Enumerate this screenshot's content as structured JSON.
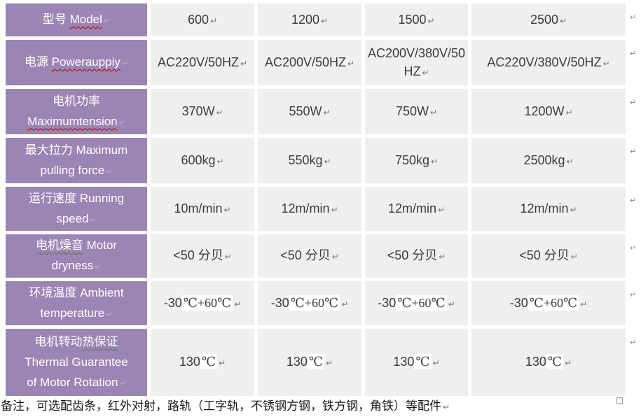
{
  "colors": {
    "label_column_bg": "#9B85B4",
    "value_cell_bg": "#F1EFED",
    "value_text": "#3C3C3C",
    "spell_squiggle": "#C00000",
    "grammar_squiggle": "#567B56",
    "highlight_bg": "#FFFFFF"
  },
  "marks": {
    "line_break": "↵"
  },
  "table": {
    "rows": [
      {
        "name": "model",
        "label_lines": [
          [
            {
              "t": "型号 "
            },
            {
              "t": "Model",
              "u": "spell"
            }
          ]
        ],
        "cells": [
          {
            "segs": [
              {
                "t": "600"
              }
            ]
          },
          {
            "segs": [
              {
                "t": "1200"
              }
            ]
          },
          {
            "segs": [
              {
                "t": "1500"
              }
            ]
          },
          {
            "segs": [
              {
                "t": "2500"
              }
            ]
          }
        ]
      },
      {
        "name": "power-supply",
        "label_lines": [
          [
            {
              "t": "电源 "
            },
            {
              "t": "Powerauppiy",
              "u": "spell"
            }
          ]
        ],
        "cells": [
          {
            "segs": [
              {
                "t": "AC220V/50HZ"
              }
            ]
          },
          {
            "segs": [
              {
                "t": "AC200V/50HZ"
              }
            ]
          },
          {
            "segs": [
              {
                "t": "AC200V/380V/50HZ"
              }
            ],
            "break": true
          },
          {
            "segs": [
              {
                "t": "AC220V/380V/50HZ"
              }
            ]
          }
        ]
      },
      {
        "name": "motor-power",
        "label_lines": [
          [
            {
              "t": "电机功率"
            }
          ],
          [
            {
              "t": "Maximumtension",
              "u": "spell"
            }
          ]
        ],
        "cells": [
          {
            "segs": [
              {
                "t": "370W"
              }
            ]
          },
          {
            "segs": [
              {
                "t": "550W"
              }
            ]
          },
          {
            "segs": [
              {
                "t": "750W"
              }
            ]
          },
          {
            "segs": [
              {
                "t": "1200W"
              }
            ]
          }
        ]
      },
      {
        "name": "max-pulling-force",
        "label_lines": [
          [
            {
              "t": "最大拉力 Maximum"
            }
          ],
          [
            {
              "t": "pulling force"
            }
          ]
        ],
        "cells": [
          {
            "segs": [
              {
                "t": "600kg"
              }
            ]
          },
          {
            "segs": [
              {
                "t": "550kg"
              }
            ]
          },
          {
            "segs": [
              {
                "t": "750kg"
              }
            ]
          },
          {
            "segs": [
              {
                "t": "2500kg"
              }
            ]
          }
        ]
      },
      {
        "name": "running-speed",
        "label_lines": [
          [
            {
              "t": "运行速度 Running"
            }
          ],
          [
            {
              "t": "speed"
            }
          ]
        ],
        "cells": [
          {
            "segs": [
              {
                "t": "10m/min"
              }
            ]
          },
          {
            "segs": [
              {
                "t": "12m/min"
              }
            ]
          },
          {
            "segs": [
              {
                "t": "12m/min"
              }
            ]
          },
          {
            "segs": [
              {
                "t": "12m/min"
              }
            ]
          }
        ]
      },
      {
        "name": "motor-noise",
        "label_lines": [
          [
            {
              "t": "电机燥音",
              "u": "grammar"
            },
            {
              "t": " Motor"
            }
          ],
          [
            {
              "t": "dryness"
            }
          ]
        ],
        "cells": [
          {
            "segs": [
              {
                "t": "<50 分贝"
              }
            ]
          },
          {
            "segs": [
              {
                "t": "<50 分贝"
              }
            ]
          },
          {
            "segs": [
              {
                "t": "<50 分贝"
              }
            ]
          },
          {
            "segs": [
              {
                "t": "<50 分贝"
              }
            ]
          }
        ]
      },
      {
        "name": "ambient-temperature",
        "label_lines": [
          [
            {
              "t": "环境温度 Ambient"
            }
          ],
          [
            {
              "t": "temperature"
            }
          ]
        ],
        "cells": [
          {
            "segs": [
              {
                "t": "-30"
              },
              {
                "t": "℃+60℃",
                "hl": true
              }
            ]
          },
          {
            "segs": [
              {
                "t": "-30"
              },
              {
                "t": "℃+60℃",
                "hl": true
              }
            ]
          },
          {
            "segs": [
              {
                "t": "-30"
              },
              {
                "t": "℃+60℃",
                "hl": true
              }
            ]
          },
          {
            "segs": [
              {
                "t": "-30"
              },
              {
                "t": "℃+60℃",
                "hl": true
              }
            ]
          }
        ]
      },
      {
        "name": "thermal-guarantee",
        "label_lines": [
          [
            {
              "t": "电机转动"
            },
            {
              "t": "热保证",
              "u": "grammar"
            }
          ],
          [
            {
              "t": "Thermal Guarantee"
            }
          ],
          [
            {
              "t": "of Motor Rotation"
            }
          ]
        ],
        "cells": [
          {
            "segs": [
              {
                "t": "130"
              },
              {
                "t": "℃",
                "hl": true
              }
            ]
          },
          {
            "segs": [
              {
                "t": "130"
              },
              {
                "t": "℃",
                "hl": true
              }
            ]
          },
          {
            "segs": [
              {
                "t": "130"
              },
              {
                "t": "℃",
                "hl": true
              }
            ]
          },
          {
            "segs": [
              {
                "t": "130"
              },
              {
                "t": "℃",
                "hl": true
              }
            ]
          }
        ]
      }
    ]
  },
  "note": {
    "text": "备注，可选配齿条，红外对射，路轨（工字轨，不锈钢方钢，铁方钢，角铁）等配件"
  }
}
